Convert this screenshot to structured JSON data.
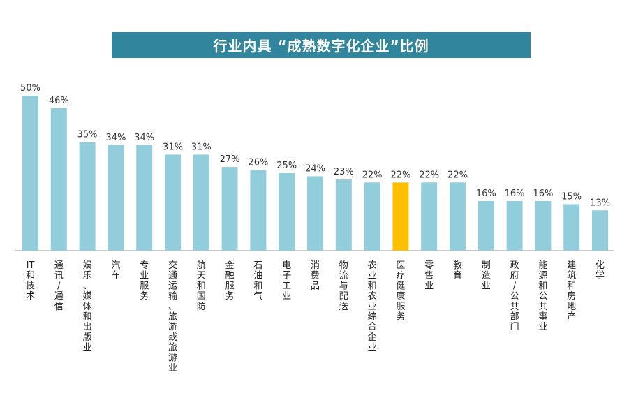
{
  "chart_data": {
    "type": "bar",
    "title": "行业内具 “成熟数字化企业”比例",
    "categories": [
      "IT和技术",
      "通讯/通信",
      "娱乐、媒体和出版业",
      "汽车",
      "专业服务",
      "交通运输、旅游或旅游业",
      "航天和国防",
      "金融服务",
      "石油和气",
      "电子工业",
      "消费品",
      "物流与配送",
      "农业和农业综合企业",
      "医疗健康服务",
      "零售业",
      "教育",
      "制造业",
      "政府/公共部门",
      "能源和公共事业",
      "建筑和房地产",
      "化学"
    ],
    "values": [
      50,
      46,
      35,
      34,
      34,
      31,
      31,
      27,
      26,
      25,
      24,
      23,
      22,
      22,
      22,
      22,
      16,
      16,
      16,
      15,
      13
    ],
    "value_labels": [
      "50%",
      "46%",
      "35%",
      "34%",
      "34%",
      "31%",
      "31%",
      "27%",
      "26%",
      "25%",
      "24%",
      "23%",
      "22%",
      "22%",
      "22%",
      "22%",
      "16%",
      "16%",
      "16%",
      "15%",
      "13%"
    ],
    "highlight_index": 13,
    "colors": {
      "bar": "#92CDDC",
      "highlight": "#FFC000",
      "banner": "#31859C",
      "axis": "#999999"
    },
    "ylim": [
      0,
      50
    ],
    "xlabel": "",
    "ylabel": ""
  }
}
